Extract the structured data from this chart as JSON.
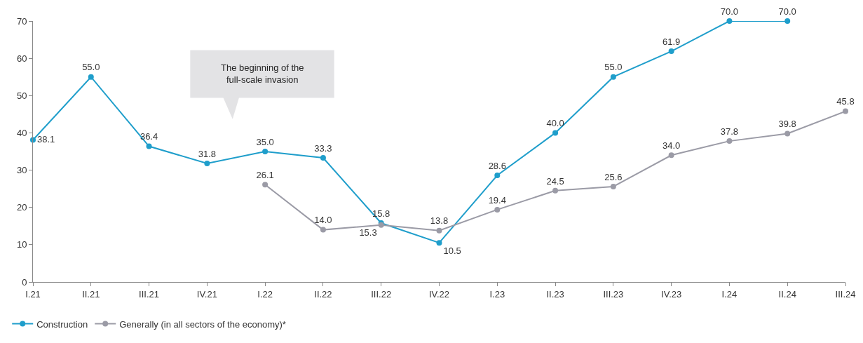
{
  "chart_data": {
    "type": "line",
    "categories": [
      "I.21",
      "II.21",
      "III.21",
      "IV.21",
      "I.22",
      "II.22",
      "III.22",
      "IV.22",
      "I.23",
      "II.23",
      "III.23",
      "IV.23",
      "I.24",
      "II.24",
      "III.24"
    ],
    "series": [
      {
        "name": "Construction",
        "color": "#1f9ecb",
        "values": [
          38.1,
          55,
          36.4,
          31.8,
          35,
          33.3,
          15.8,
          10.5,
          28.6,
          40,
          55,
          61.9,
          70,
          70,
          null
        ],
        "value_labels": [
          "38.1",
          "55.0",
          "36.4",
          "31.8",
          "35.0",
          "33.3",
          "15.8",
          "10.5",
          "28.6",
          "40.0",
          "55.0",
          "61.9",
          "70.0",
          "70.0",
          null
        ]
      },
      {
        "name": "Generally (in all sectors of the economy)*",
        "color": "#9b9ba6",
        "values": [
          null,
          null,
          null,
          null,
          26.1,
          14,
          15.3,
          13.8,
          19.4,
          24.5,
          25.6,
          34,
          37.8,
          39.8,
          45.8
        ],
        "value_labels": [
          null,
          null,
          null,
          null,
          "26.1",
          "14.0",
          "15.3",
          "13.8",
          "19.4",
          "24.5",
          "25.6",
          "34.0",
          "37.8",
          "39.8",
          "45.8"
        ]
      }
    ],
    "ylim": [
      0,
      70
    ],
    "yticks": [
      0,
      10,
      20,
      30,
      40,
      50,
      60,
      70
    ],
    "legend": "bottom left",
    "marker": "circle",
    "line_style": "solid",
    "annotations": [
      "The beginning of the full-scale invasion"
    ]
  }
}
